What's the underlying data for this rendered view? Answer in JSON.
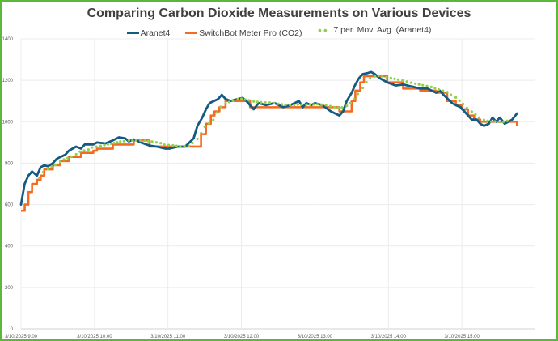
{
  "chart_data": {
    "type": "line",
    "title": "Comparing Carbon Dioxide Measurements on Various Devices",
    "xlabel": "",
    "ylabel": "",
    "date": "3/10/2025",
    "xlim": [
      "9:00",
      "16:00"
    ],
    "ylim": [
      0,
      1400
    ],
    "y_ticks": [
      "0",
      "200",
      "400",
      "600",
      "800",
      "1000",
      "1200",
      "1400"
    ],
    "x_ticks": [
      "3/10/2025 9:00",
      "3/10/2025 10:00",
      "3/10/2025 11:00",
      "3/10/2025 12:00",
      "3/10/2025 13:00",
      "3/10/2025 14:00",
      "3/10/2025 15:00"
    ],
    "grid": "vertical and horizontal",
    "legend_position": "top",
    "series": [
      {
        "name": "Aranet4",
        "color": "#145a82",
        "style": "solid",
        "x": [
          "9:00",
          "9:03",
          "9:06",
          "9:09",
          "9:13",
          "9:16",
          "9:19",
          "9:22",
          "9:26",
          "9:29",
          "9:32",
          "9:36",
          "9:39",
          "9:45",
          "9:49",
          "9:52",
          "9:59",
          "10:02",
          "10:09",
          "10:15",
          "10:20",
          "10:25",
          "10:28",
          "10:32",
          "10:38",
          "10:45",
          "10:51",
          "10:58",
          "11:01",
          "11:08",
          "11:14",
          "11:21",
          "11:24",
          "11:28",
          "11:31",
          "11:34",
          "11:41",
          "11:44",
          "11:47",
          "11:51",
          "11:57",
          "12:01",
          "12:04",
          "12:10",
          "12:14",
          "12:20",
          "12:27",
          "12:34",
          "12:40",
          "12:47",
          "12:50",
          "12:53",
          "12:57",
          "13:00",
          "13:06",
          "13:13",
          "13:20",
          "13:23",
          "13:26",
          "13:30",
          "13:33",
          "13:36",
          "13:39",
          "13:43",
          "13:46",
          "13:49",
          "13:53",
          "13:56",
          "13:59",
          "14:06",
          "14:12",
          "14:19",
          "14:26",
          "14:32",
          "14:39",
          "14:42",
          "14:45",
          "14:52",
          "14:55",
          "14:59",
          "15:02",
          "15:05",
          "15:08",
          "15:12",
          "15:15",
          "15:18",
          "15:22",
          "15:25",
          "15:28",
          "15:31",
          "15:35",
          "15:38",
          "15:41",
          "15:45"
        ],
        "values": [
          600,
          700,
          740,
          760,
          740,
          780,
          790,
          785,
          800,
          820,
          830,
          840,
          860,
          880,
          870,
          890,
          890,
          900,
          895,
          910,
          925,
          920,
          905,
          915,
          900,
          885,
          880,
          870,
          870,
          880,
          880,
          920,
          980,
          1020,
          1060,
          1090,
          1110,
          1130,
          1110,
          1100,
          1110,
          1115,
          1100,
          1060,
          1090,
          1080,
          1090,
          1070,
          1080,
          1100,
          1070,
          1090,
          1080,
          1090,
          1080,
          1050,
          1030,
          1050,
          1100,
          1140,
          1180,
          1210,
          1230,
          1235,
          1240,
          1230,
          1210,
          1200,
          1190,
          1175,
          1180,
          1170,
          1160,
          1160,
          1140,
          1150,
          1130,
          1090,
          1080,
          1070,
          1050,
          1030,
          1010,
          1010,
          990,
          980,
          990,
          1020,
          1000,
          1020,
          990,
          1000,
          1010,
          1040
        ]
      },
      {
        "name": "SwitchBot Meter Pro (CO2)",
        "color": "#f26b21",
        "style": "step",
        "x": [
          "9:00",
          "9:03",
          "9:06",
          "9:09",
          "9:13",
          "9:16",
          "9:19",
          "9:26",
          "9:32",
          "9:39",
          "9:49",
          "9:59",
          "10:02",
          "10:15",
          "10:32",
          "10:45",
          "11:24",
          "11:27",
          "11:31",
          "11:35",
          "11:38",
          "11:42",
          "11:47",
          "12:07",
          "13:20",
          "13:28",
          "13:30",
          "13:33",
          "13:37",
          "13:40",
          "13:59",
          "14:12",
          "14:26",
          "14:39",
          "14:48",
          "14:55",
          "15:00",
          "15:05",
          "15:10",
          "15:15",
          "15:45"
        ],
        "values": [
          570,
          600,
          660,
          700,
          720,
          740,
          770,
          790,
          810,
          830,
          850,
          860,
          870,
          890,
          910,
          880,
          880,
          940,
          990,
          1030,
          1050,
          1070,
          1100,
          1070,
          1050,
          1050,
          1100,
          1150,
          1190,
          1220,
          1190,
          1160,
          1150,
          1140,
          1100,
          1080,
          1060,
          1030,
          1010,
          1000,
          980
        ]
      },
      {
        "name": "7 per. Mov. Avg. (Aranet4)",
        "color": "#8fd14f",
        "style": "dotted",
        "trendline": {
          "type": "moving_average",
          "period": 7,
          "of": "Aranet4"
        }
      }
    ]
  }
}
